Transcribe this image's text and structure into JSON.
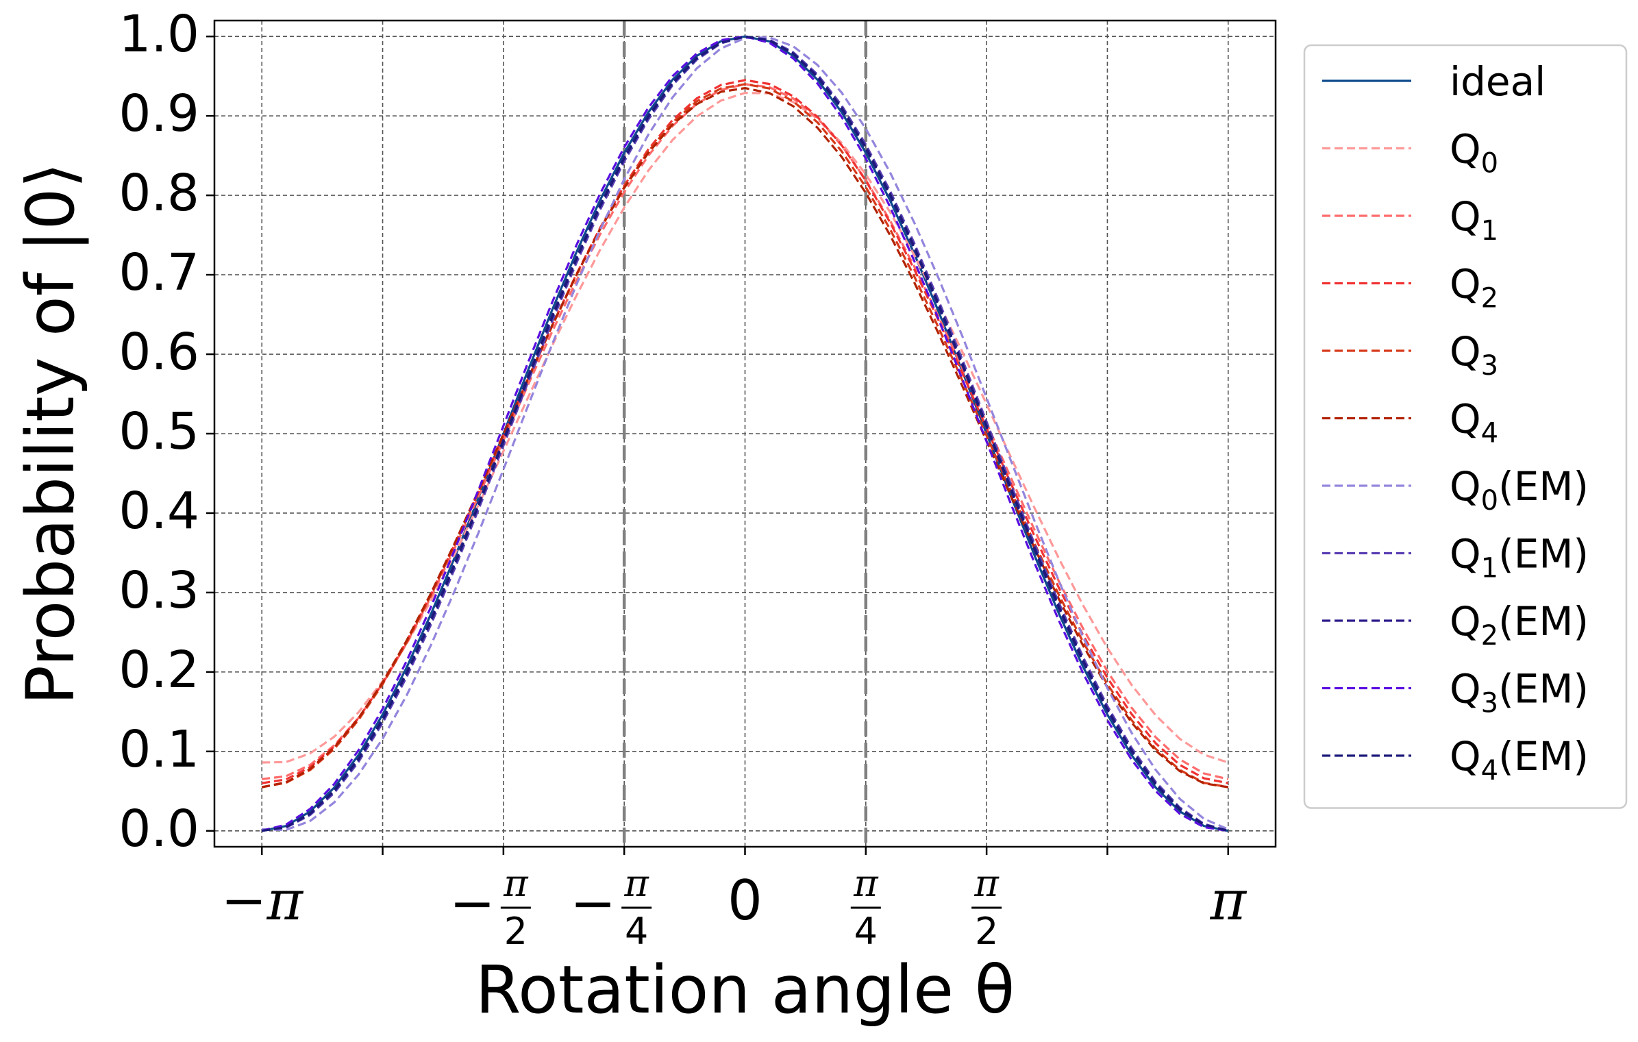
{
  "chart_data": {
    "type": "line",
    "xlabel": "Rotation angle θ",
    "ylabel": "Probability of |0⟩",
    "xlim": [
      -3.45,
      3.45
    ],
    "ylim": [
      -0.02,
      1.02
    ],
    "yticks": [
      "0.0",
      "0.1",
      "0.2",
      "0.3",
      "0.4",
      "0.5",
      "0.6",
      "0.7",
      "0.8",
      "0.9",
      "1.0"
    ],
    "xticks": [
      {
        "value": -3.14159,
        "label": "−π"
      },
      {
        "value": -2.35619,
        "label": ""
      },
      {
        "value": -1.5708,
        "label": "−π/2"
      },
      {
        "value": -0.7854,
        "label": "−π/4"
      },
      {
        "value": 0,
        "label": "0"
      },
      {
        "value": 0.7854,
        "label": "π/4"
      },
      {
        "value": 1.5708,
        "label": "π/2"
      },
      {
        "value": 2.35619,
        "label": ""
      },
      {
        "value": 3.14159,
        "label": "π"
      }
    ],
    "vlines": [
      -0.7854,
      0.7854
    ],
    "grid": true,
    "legend_position": "outside-right",
    "x_range": [
      -3.14159,
      3.14159
    ],
    "n_points": 41,
    "series": [
      {
        "name": "ideal",
        "sub": "",
        "suffix": "",
        "color": "#0d4a8c",
        "dash": false,
        "offset": 0,
        "max": 1,
        "min": 0
      },
      {
        "name": "Q",
        "sub": "0",
        "suffix": "",
        "color": "#ff9999",
        "dash": true,
        "offset": 0.14,
        "max": 0.93,
        "min": 0.085
      },
      {
        "name": "Q",
        "sub": "1",
        "suffix": "",
        "color": "#ff6b6b",
        "dash": true,
        "offset": 0.05,
        "max": 0.94,
        "min": 0.065
      },
      {
        "name": "Q",
        "sub": "2",
        "suffix": "",
        "color": "#f03232",
        "dash": true,
        "offset": 0.02,
        "max": 0.945,
        "min": 0.06
      },
      {
        "name": "Q",
        "sub": "3",
        "suffix": "",
        "color": "#d73a1a",
        "dash": true,
        "offset": 0.0,
        "max": 0.94,
        "min": 0.055
      },
      {
        "name": "Q",
        "sub": "4",
        "suffix": "",
        "color": "#b22200",
        "dash": true,
        "offset": -0.02,
        "max": 0.935,
        "min": 0.055
      },
      {
        "name": "Q",
        "sub": "0",
        "suffix": "(EM)",
        "color": "#9485dd",
        "dash": true,
        "offset": 0.18,
        "max": 1.0,
        "min": 0.0
      },
      {
        "name": "Q",
        "sub": "1",
        "suffix": "(EM)",
        "color": "#5b3fb3",
        "dash": true,
        "offset": 0.06,
        "max": 1.0,
        "min": 0.0
      },
      {
        "name": "Q",
        "sub": "2",
        "suffix": "(EM)",
        "color": "#2a1a8a",
        "dash": true,
        "offset": 0.03,
        "max": 1.0,
        "min": 0.0
      },
      {
        "name": "Q",
        "sub": "3",
        "suffix": "(EM)",
        "color": "#5a0fe0",
        "dash": true,
        "offset": -0.04,
        "max": 1.0,
        "min": 0.0
      },
      {
        "name": "Q",
        "sub": "4",
        "suffix": "(EM)",
        "color": "#1c1a7a",
        "dash": true,
        "offset": 0.04,
        "max": 1.0,
        "min": 0.0
      }
    ]
  }
}
